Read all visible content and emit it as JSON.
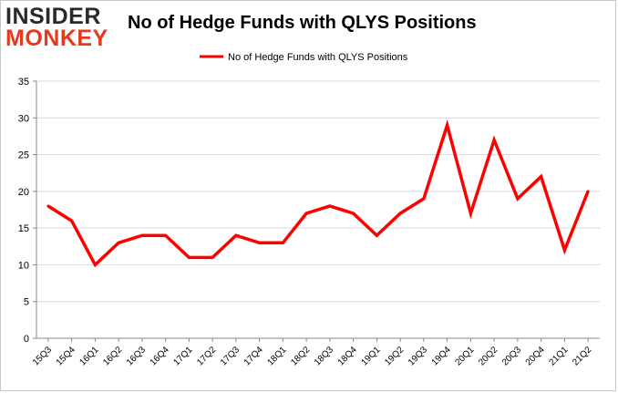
{
  "logo": {
    "line1": "INSIDER",
    "line2": "MONKEY"
  },
  "colors": {
    "series": "#ff0000",
    "grid": "#d9d9d9",
    "axis": "#888888",
    "logo_dark": "#2a2a2a",
    "logo_accent": "#e53a1e"
  },
  "chart_data": {
    "type": "line",
    "title": "No of Hedge Funds with QLYS Positions",
    "xlabel": "",
    "ylabel": "",
    "ylim": [
      0,
      35
    ],
    "yticks": [
      0,
      5,
      10,
      15,
      20,
      25,
      30,
      35
    ],
    "grid": "horizontal",
    "legend_position": "top-center",
    "categories": [
      "15Q3",
      "15Q4",
      "16Q1",
      "16Q2",
      "16Q3",
      "16Q4",
      "17Q1",
      "17Q2",
      "17Q3",
      "17Q4",
      "18Q1",
      "18Q2",
      "18Q3",
      "18Q4",
      "19Q1",
      "19Q2",
      "19Q3",
      "19Q4",
      "20Q1",
      "20Q2",
      "20Q3",
      "20Q4",
      "21Q1",
      "21Q2"
    ],
    "series": [
      {
        "name": "No of Hedge Funds with QLYS Positions",
        "values": [
          18,
          16,
          10,
          13,
          14,
          14,
          11,
          11,
          14,
          13,
          13,
          17,
          18,
          17,
          14,
          17,
          19,
          29,
          17,
          27,
          19,
          22,
          12,
          20
        ]
      }
    ]
  }
}
